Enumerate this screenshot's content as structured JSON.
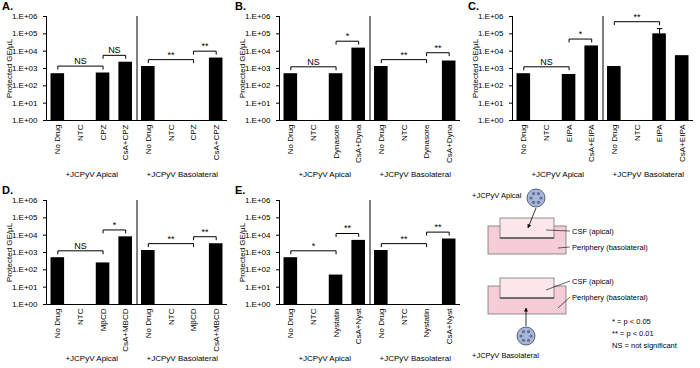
{
  "chart_data": [
    {
      "type": "bar",
      "title": "A.",
      "y_label": "Protected GE/µL",
      "log": "y",
      "color": "#000000",
      "groups": [
        "+JCPyV Apical",
        "+JCPyV Basolateral"
      ],
      "categories": [
        "No Drug",
        "NTC",
        "CPZ",
        "CsA+CPZ",
        "No Drug",
        "NTC",
        "CPZ",
        "CsA+CPZ"
      ],
      "values": [
        500,
        null,
        550,
        2300,
        1300,
        null,
        null,
        4000
      ],
      "ylim": [
        1,
        1000000
      ],
      "yticks": [
        {
          "value": 1,
          "label": "1.E+00"
        },
        {
          "value": 10,
          "label": "1.E+01"
        },
        {
          "value": 100,
          "label": "1.E+02"
        },
        {
          "value": 1000,
          "label": "1.E+03"
        },
        {
          "value": 10000,
          "label": "1.E+04"
        },
        {
          "value": 100000,
          "label": "1.E+05"
        },
        {
          "value": 1000000,
          "label": "1.E+06"
        }
      ],
      "brackets": [
        {
          "from": 0,
          "to": 2,
          "label": "NS"
        },
        {
          "from": 2,
          "to": 3,
          "label": "NS"
        },
        {
          "from": 4,
          "to": 6,
          "label": "**"
        },
        {
          "from": 6,
          "to": 7,
          "label": "**"
        }
      ]
    },
    {
      "type": "bar",
      "title": "B.",
      "y_label": "Protected GE/µL",
      "log": "y",
      "color": "#000000",
      "groups": [
        "+JCPyV Apical",
        "+JCPyV Basolateral"
      ],
      "categories": [
        "No Drug",
        "NTC",
        "Dynasore",
        "CsA+Dyna",
        "No Drug",
        "NTC",
        "Dynasore",
        "CsA+Dyna"
      ],
      "values": [
        500,
        null,
        500,
        15000,
        1300,
        null,
        null,
        2700
      ],
      "ylim": [
        1,
        1000000
      ],
      "yticks": [
        {
          "value": 1,
          "label": "1.E+00"
        },
        {
          "value": 10,
          "label": "1.E+01"
        },
        {
          "value": 100,
          "label": "1.E+02"
        },
        {
          "value": 1000,
          "label": "1.E+03"
        },
        {
          "value": 10000,
          "label": "1.E+04"
        },
        {
          "value": 100000,
          "label": "1.E+05"
        },
        {
          "value": 1000000,
          "label": "1.E+06"
        }
      ],
      "brackets": [
        {
          "from": 0,
          "to": 2,
          "label": "NS"
        },
        {
          "from": 2,
          "to": 3,
          "label": "*"
        },
        {
          "from": 4,
          "to": 6,
          "label": "**"
        },
        {
          "from": 6,
          "to": 7,
          "label": "**"
        }
      ]
    },
    {
      "type": "bar",
      "title": "C.",
      "y_label": "Protected GE/µL",
      "log": "y",
      "color": "#000000",
      "groups": [
        "+JCPyV Apical",
        "+JCPyV Basolateral"
      ],
      "categories": [
        "No Drug",
        "NTC",
        "EIPA",
        "CsA+EIPA",
        "No Drug",
        "NTC",
        "EIPA",
        "CsA+EIPA"
      ],
      "values": [
        500,
        null,
        450,
        20000,
        1300,
        null,
        100000,
        5500
      ],
      "errors": [
        null,
        null,
        null,
        null,
        null,
        null,
        100000,
        null
      ],
      "ylim": [
        1,
        1000000
      ],
      "yticks": [
        {
          "value": 1,
          "label": "1.E+00"
        },
        {
          "value": 10,
          "label": "1.E+01"
        },
        {
          "value": 100,
          "label": "1.E+02"
        },
        {
          "value": 1000,
          "label": "1.E+03"
        },
        {
          "value": 10000,
          "label": "1.E+04"
        },
        {
          "value": 100000,
          "label": "1.E+05"
        },
        {
          "value": 1000000,
          "label": "1.E+06"
        }
      ],
      "brackets": [
        {
          "from": 0,
          "to": 2,
          "label": "NS"
        },
        {
          "from": 2,
          "to": 3,
          "label": "*"
        },
        {
          "from": 4,
          "to": 6,
          "label": "**"
        }
      ]
    },
    {
      "type": "bar",
      "title": "D.",
      "y_label": "Protected GE/µL",
      "log": "y",
      "color": "#000000",
      "groups": [
        "+JCPyV Apical",
        "+JCPyV Basolateral"
      ],
      "categories": [
        "No Drug",
        "NTC",
        "MβCD",
        "CsA+MBCD",
        "No Drug",
        "NTC",
        "MβCD",
        "CsA+MBCD"
      ],
      "values": [
        500,
        null,
        250,
        8000,
        1300,
        null,
        null,
        3200
      ],
      "ylim": [
        1,
        1000000
      ],
      "yticks": [
        {
          "value": 1,
          "label": "1.E+00"
        },
        {
          "value": 10,
          "label": "1.E+01"
        },
        {
          "value": 100,
          "label": "1.E+02"
        },
        {
          "value": 1000,
          "label": "1.E+03"
        },
        {
          "value": 10000,
          "label": "1.E+04"
        },
        {
          "value": 100000,
          "label": "1.E+05"
        },
        {
          "value": 1000000,
          "label": "1.E+06"
        }
      ],
      "brackets": [
        {
          "from": 0,
          "to": 2,
          "label": "NS"
        },
        {
          "from": 2,
          "to": 3,
          "label": "*"
        },
        {
          "from": 4,
          "to": 6,
          "label": "**"
        },
        {
          "from": 6,
          "to": 7,
          "label": "**"
        }
      ]
    },
    {
      "type": "bar",
      "title": "E.",
      "y_label": "Protected GE/µL",
      "log": "y",
      "color": "#000000",
      "groups": [
        "+JCPyV Apical",
        "+JCPyV Basolateral"
      ],
      "categories": [
        "No Drug",
        "NTC",
        "Nystatin",
        "CsA+Nyst",
        "No Drug",
        "NTC",
        "Nystatin",
        "CsA+Nyst"
      ],
      "values": [
        500,
        null,
        50,
        5000,
        1300,
        null,
        null,
        6000
      ],
      "ylim": [
        1,
        1000000
      ],
      "yticks": [
        {
          "value": 1,
          "label": "1.E+00"
        },
        {
          "value": 10,
          "label": "1.E+01"
        },
        {
          "value": 100,
          "label": "1.E+02"
        },
        {
          "value": 1000,
          "label": "1.E+03"
        },
        {
          "value": 10000,
          "label": "1.E+04"
        },
        {
          "value": 100000,
          "label": "1.E+05"
        },
        {
          "value": 1000000,
          "label": "1.E+06"
        }
      ],
      "brackets": [
        {
          "from": 0,
          "to": 2,
          "label": "*"
        },
        {
          "from": 2,
          "to": 3,
          "label": "**"
        },
        {
          "from": 4,
          "to": 6,
          "label": "**"
        },
        {
          "from": 6,
          "to": 7,
          "label": "**"
        }
      ]
    }
  ],
  "diagram": {
    "top": {
      "label": "+JCPyV Apical",
      "apical": "CSF (apical)",
      "basolateral": "Periphery (basolateral)"
    },
    "bottom": {
      "label": "+JCPyV Basolateral",
      "apical": "CSF (apical)",
      "basolateral": "Periphery (basolateral)"
    }
  },
  "notes": [
    "* = p < 0.05",
    "** = p < 0.01",
    "NS = not significant"
  ]
}
